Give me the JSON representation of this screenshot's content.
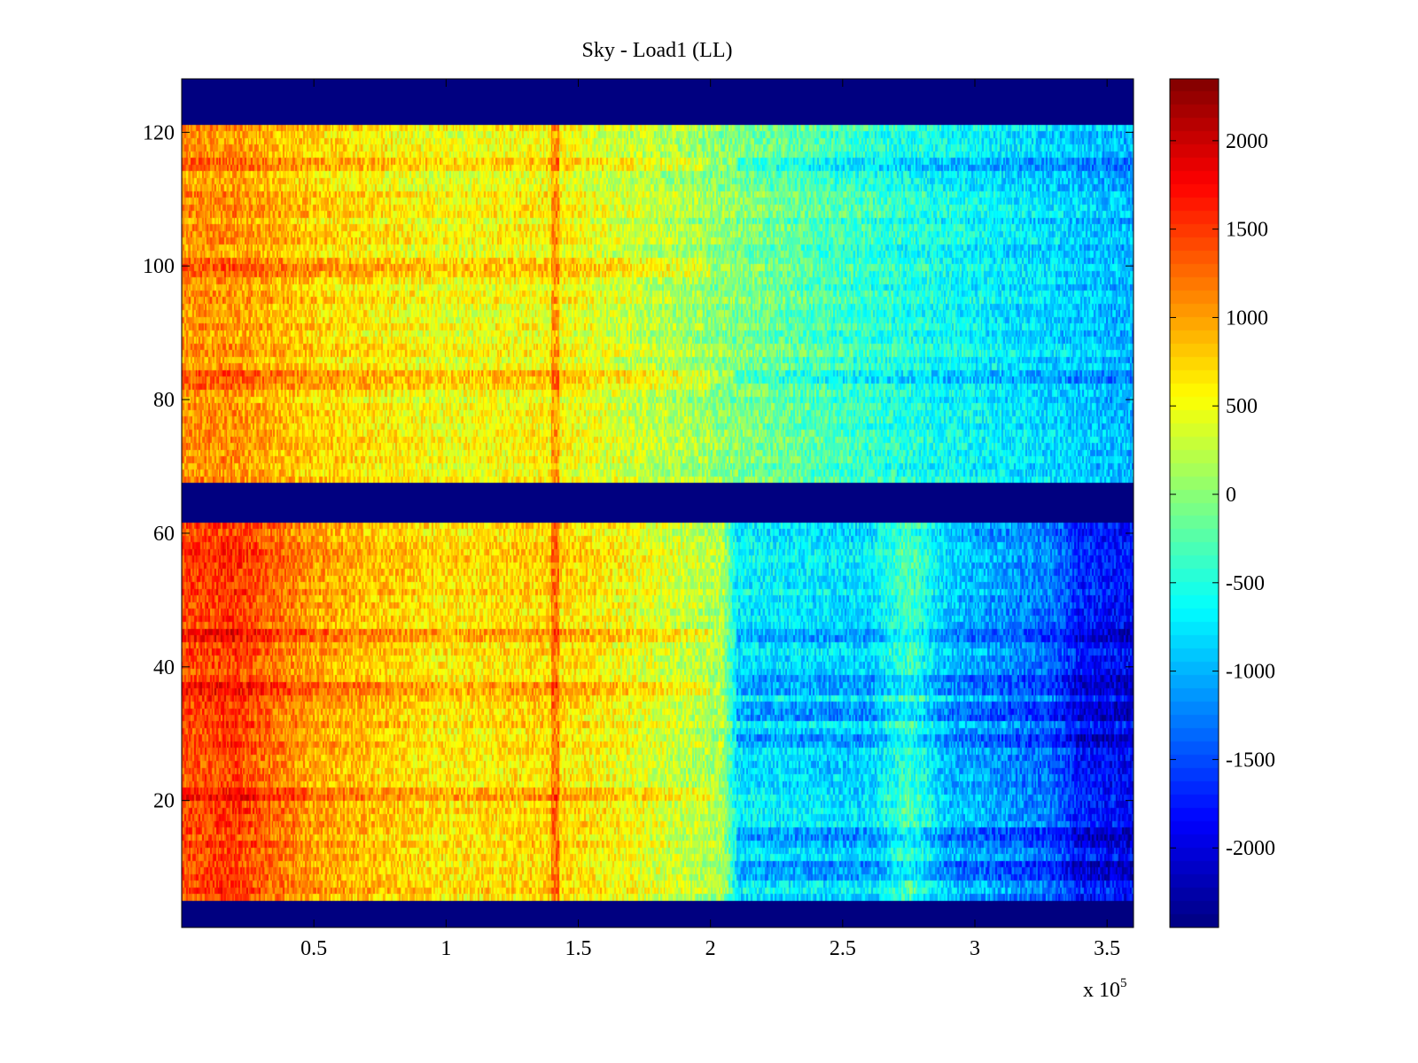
{
  "chart_data": {
    "type": "heatmap",
    "title": "Sky - Load1 (LL)",
    "xlabel": "",
    "ylabel": "",
    "x_multiplier_label": "x 10",
    "x_multiplier_exponent": "5",
    "xlim": [
      0,
      3.6
    ],
    "ylim": [
      1,
      128
    ],
    "x_ticks": [
      0.5,
      1,
      1.5,
      2,
      2.5,
      3,
      3.5
    ],
    "x_tick_labels": [
      "0.5",
      "1",
      "1.5",
      "2",
      "2.5",
      "3",
      "3.5"
    ],
    "y_ticks": [
      20,
      40,
      60,
      80,
      100,
      120
    ],
    "y_tick_labels": [
      "20",
      "40",
      "60",
      "80",
      "100",
      "120"
    ],
    "colormap": "jet",
    "clim": [
      -2450,
      2350
    ],
    "colorbar_ticks": [
      2000,
      1500,
      1000,
      500,
      0,
      -500,
      -1000,
      -1500,
      -2000
    ],
    "colorbar_tick_labels": [
      "2000",
      "1500",
      "1000",
      "500",
      "0",
      "-500",
      "-1000",
      "-1500",
      "-2000"
    ],
    "masked_row_bands": [
      [
        1,
        4
      ],
      [
        62,
        67
      ],
      [
        122,
        128
      ]
    ],
    "masked_value": -2450,
    "column_trend_upper_rows_68_121": [
      {
        "x": 0.0,
        "value": 1050
      },
      {
        "x": 0.2,
        "value": 1050
      },
      {
        "x": 0.5,
        "value": 750
      },
      {
        "x": 1.0,
        "value": 480
      },
      {
        "x": 1.4,
        "value": 560
      },
      {
        "x": 1.6,
        "value": 400
      },
      {
        "x": 2.0,
        "value": 50
      },
      {
        "x": 2.5,
        "value": -350
      },
      {
        "x": 3.0,
        "value": -650
      },
      {
        "x": 3.6,
        "value": -1000
      }
    ],
    "column_trend_lower_rows_5_61": [
      {
        "x": 0.0,
        "value": 1400
      },
      {
        "x": 0.2,
        "value": 1500
      },
      {
        "x": 0.5,
        "value": 1000
      },
      {
        "x": 1.0,
        "value": 650
      },
      {
        "x": 1.4,
        "value": 750
      },
      {
        "x": 1.6,
        "value": 600
      },
      {
        "x": 2.05,
        "value": 150
      },
      {
        "x": 2.1,
        "value": -700
      },
      {
        "x": 2.6,
        "value": -800
      },
      {
        "x": 2.75,
        "value": -300
      },
      {
        "x": 2.9,
        "value": -900
      },
      {
        "x": 3.3,
        "value": -1300
      },
      {
        "x": 3.4,
        "value": -1700
      },
      {
        "x": 3.6,
        "value": -1800
      }
    ],
    "warm_streak_x": [
      1.4,
      1.43
    ],
    "cold_row_bands": [
      [
        8,
        10
      ],
      [
        13,
        15
      ],
      [
        28,
        29
      ],
      [
        32,
        34
      ],
      [
        36,
        38
      ],
      [
        44,
        45
      ],
      [
        83,
        84
      ],
      [
        115,
        116
      ]
    ],
    "warm_row_bands": [
      [
        20,
        21
      ],
      [
        36,
        37
      ],
      [
        44,
        45
      ],
      [
        82,
        84
      ],
      [
        99,
        101
      ],
      [
        115,
        116
      ]
    ]
  }
}
